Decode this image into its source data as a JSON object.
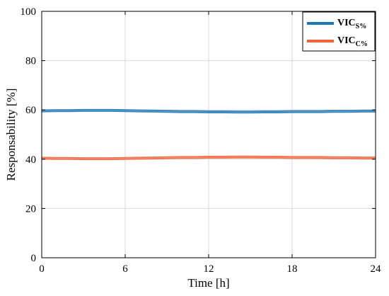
{
  "chart_data": {
    "type": "line",
    "title": "",
    "xlabel": "Time [h]",
    "ylabel": "Responsability [%]",
    "xlim": [
      0,
      24
    ],
    "ylim": [
      0,
      100
    ],
    "xticks": [
      0,
      6,
      12,
      18,
      24
    ],
    "yticks": [
      0,
      20,
      40,
      60,
      80,
      100
    ],
    "grid": true,
    "legend_position": "top-right",
    "series": [
      {
        "name_main": "VIC",
        "name_sub": "S%",
        "color": "#1f77b4",
        "x": [
          0,
          1,
          2,
          3,
          4,
          5,
          6,
          7,
          8,
          9,
          10,
          11,
          12,
          13,
          14,
          15,
          16,
          17,
          18,
          19,
          20,
          21,
          22,
          23,
          24
        ],
        "y": [
          59.6,
          59.7,
          59.7,
          59.8,
          59.8,
          59.8,
          59.7,
          59.6,
          59.5,
          59.4,
          59.3,
          59.3,
          59.2,
          59.2,
          59.1,
          59.1,
          59.2,
          59.2,
          59.3,
          59.3,
          59.3,
          59.4,
          59.4,
          59.5,
          59.5
        ]
      },
      {
        "name_main": "VIC",
        "name_sub": "C%",
        "color": "#f0643c",
        "x": [
          0,
          1,
          2,
          3,
          4,
          5,
          6,
          7,
          8,
          9,
          10,
          11,
          12,
          13,
          14,
          15,
          16,
          17,
          18,
          19,
          20,
          21,
          22,
          23,
          24
        ],
        "y": [
          40.4,
          40.3,
          40.3,
          40.2,
          40.2,
          40.2,
          40.3,
          40.4,
          40.5,
          40.6,
          40.7,
          40.7,
          40.8,
          40.8,
          40.9,
          40.9,
          40.8,
          40.8,
          40.7,
          40.7,
          40.7,
          40.6,
          40.6,
          40.5,
          40.5
        ]
      }
    ]
  }
}
